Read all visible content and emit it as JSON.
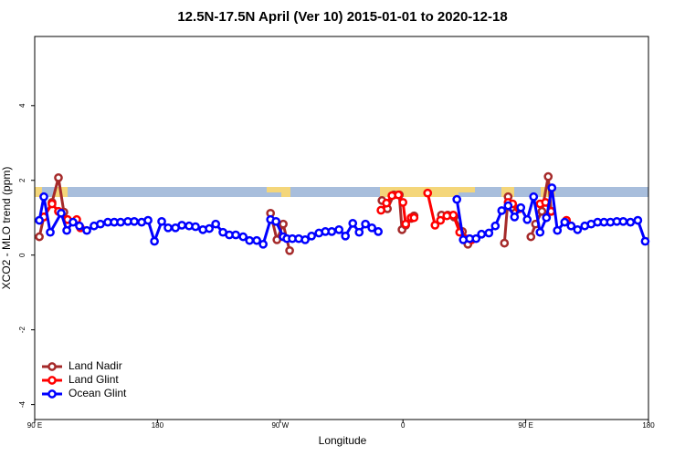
{
  "chart_data": {
    "type": "line",
    "title": "12.5N-17.5N April (Ver 10)   2015-01-01 to 2020-12-18",
    "x_label": "Longitude",
    "y_label": "XCO2 - MLO trend (ppm)",
    "xlim": [
      90,
      540
    ],
    "xticks": [
      {
        "value": 90,
        "label": "90 E"
      },
      {
        "value": 180,
        "label": "180"
      },
      {
        "value": 270,
        "label": "90 W"
      },
      {
        "value": 360,
        "label": "0"
      },
      {
        "value": 450,
        "label": "90 E"
      },
      {
        "value": 540,
        "label": "180"
      }
    ],
    "ylim": [
      -4.4,
      5.85
    ],
    "yticks": [
      -4,
      -2,
      0,
      2,
      4
    ],
    "legend": "bottom-left",
    "series": [
      {
        "name": "Land Nadir",
        "color": "#a52a2a",
        "x": [
          93.4,
          96.7,
          102.7,
          107.4,
          111.4,
          null,
          262.9,
          267.6,
          272.2,
          276.9,
          null,
          344.6,
          348.6,
          353.3,
          357.3,
          359.3,
          362.0,
          366.0,
          368.1,
          null,
          388.2,
          392.8,
          397.5,
          403.6,
          407.6,
          null,
          434.4,
          437.1,
          439.7,
          null,
          453.8,
          457.2,
          461.9,
          466.5,
          468.6
        ],
        "values": [
          0.49,
          1.02,
          1.41,
          2.07,
          1.15,
          null,
          1.12,
          0.41,
          0.83,
          0.12,
          null,
          1.46,
          1.24,
          1.61,
          1.61,
          0.68,
          0.8,
          0.98,
          1.05,
          null,
          1.07,
          1.07,
          1.02,
          0.63,
          0.29,
          null,
          0.32,
          1.56,
          1.27,
          null,
          0.49,
          0.83,
          1.17,
          2.1,
          1.17
        ]
      },
      {
        "name": "Land Glint",
        "color": "#ff0000",
        "x": [
          96.7,
          102.7,
          107.4,
          114.1,
          120.8,
          123.5,
          null,
          343.9,
          347.9,
          351.9,
          356.7,
          360.0,
          362.0,
          366.0,
          368.1,
          null,
          378.1,
          383.5,
          387.5,
          392.2,
          396.9,
          401.6,
          405.6,
          410.3,
          null,
          437.1,
          440.4,
          445.1,
          null,
          460.5,
          464.5,
          468.6,
          null,
          479.9,
          483.3
        ],
        "values": [
          1.02,
          1.37,
          1.17,
          0.95,
          0.95,
          0.73,
          null,
          1.2,
          1.39,
          1.59,
          1.61,
          1.41,
          0.83,
          1.0,
          1.0,
          null,
          1.66,
          0.8,
          0.93,
          1.05,
          1.07,
          0.61,
          0.44,
          0.41,
          null,
          1.41,
          1.37,
          1.24,
          null,
          1.37,
          1.41,
          1.17,
          null,
          0.93,
          0.78
        ]
      },
      {
        "name": "Ocean Glint",
        "color": "#0000ff",
        "x": [
          93.4,
          96.7,
          101.4,
          109.4,
          113.5,
          118.1,
          122.8,
          128.2,
          133.5,
          138.2,
          143.6,
          148.3,
          153.0,
          158.3,
          163.0,
          168.4,
          173.1,
          177.8,
          183.1,
          187.8,
          193.2,
          197.9,
          203.2,
          207.9,
          213.3,
          218.0,
          222.7,
          228.0,
          232.7,
          237.4,
          242.8,
          247.5,
          252.8,
          257.5,
          262.9,
          266.9,
          272.2,
          274.9,
          278.9,
          283.6,
          288.3,
          293.0,
          298.4,
          303.1,
          307.8,
          313.1,
          317.8,
          323.2,
          327.9,
          332.5,
          337.2,
          341.9,
          null,
          399.5,
          404.2,
          408.9,
          413.6,
          417.6,
          423.0,
          427.7,
          432.4,
          437.1,
          441.8,
          446.4,
          451.1,
          455.8,
          460.5,
          465.2,
          469.2,
          473.2,
          478.6,
          483.3,
          488.0,
          493.3,
          498.0,
          502.7,
          507.4,
          512.1,
          516.8,
          521.5,
          526.8,
          532.2,
          537.6
        ],
        "values": [
          0.93,
          1.56,
          0.61,
          1.12,
          0.66,
          0.88,
          0.78,
          0.66,
          0.78,
          0.83,
          0.88,
          0.88,
          0.88,
          0.9,
          0.9,
          0.88,
          0.93,
          0.37,
          0.9,
          0.73,
          0.73,
          0.8,
          0.78,
          0.76,
          0.68,
          0.71,
          0.83,
          0.61,
          0.54,
          0.54,
          0.49,
          0.39,
          0.39,
          0.29,
          0.95,
          0.9,
          0.49,
          0.44,
          0.44,
          0.44,
          0.41,
          0.51,
          0.59,
          0.63,
          0.63,
          0.68,
          0.51,
          0.85,
          0.61,
          0.83,
          0.73,
          0.63,
          null,
          1.49,
          0.41,
          0.44,
          0.44,
          0.56,
          0.59,
          0.78,
          1.19,
          1.32,
          1.02,
          1.27,
          0.95,
          1.56,
          0.61,
          1.0,
          1.8,
          0.66,
          0.88,
          0.78,
          0.68,
          0.78,
          0.83,
          0.88,
          0.88,
          0.88,
          0.9,
          0.9,
          0.88,
          0.93,
          0.37
        ]
      }
    ]
  }
}
